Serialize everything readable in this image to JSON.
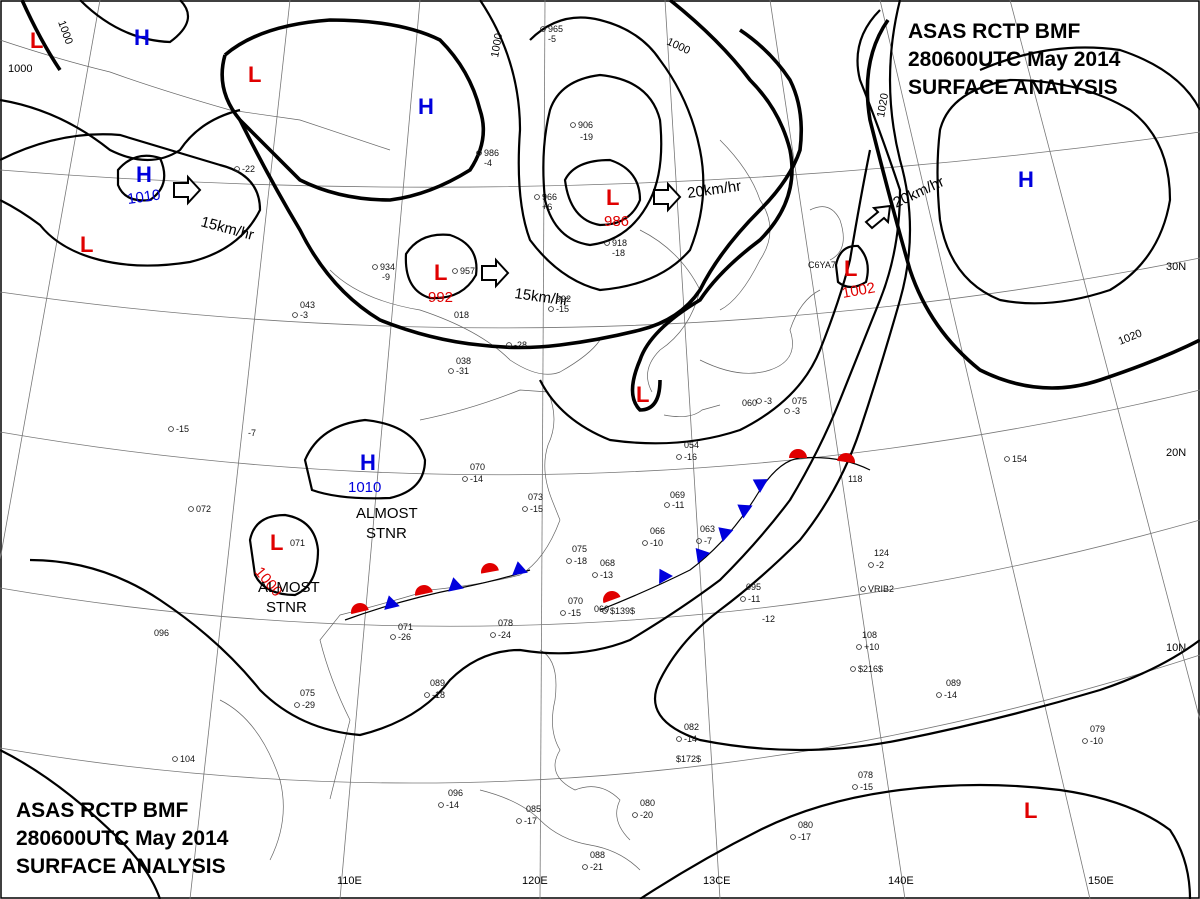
{
  "header": {
    "top_right": [
      "ASAS RCTP BMF",
      "280600UTC May 2014",
      "SURFACE ANALYSIS"
    ],
    "bottom_left": [
      "ASAS RCTP BMF",
      "280600UTC May 2014",
      "SURFACE ANALYSIS"
    ]
  },
  "colors": {
    "low": "#e00000",
    "high": "#0000dd",
    "warm_front": "#e00000",
    "cold_front": "#0000dd",
    "isobar": "#000000",
    "grid": "#777777"
  },
  "longitudes": [
    "110E",
    "120E",
    "13CE",
    "140E",
    "150E"
  ],
  "latitudes": [
    "30N",
    "20N",
    "10N"
  ],
  "isobar_labels": [
    "1000",
    "1000",
    "1000",
    "1000",
    "1020",
    "1020"
  ],
  "pressure_centres": [
    {
      "type": "L",
      "value": "986"
    },
    {
      "type": "L",
      "value": "992"
    },
    {
      "type": "L",
      "value": "1002"
    },
    {
      "type": "L",
      "value": "1000"
    },
    {
      "type": "H",
      "value": "1010"
    },
    {
      "type": "H",
      "value": "1010"
    },
    {
      "type": "L",
      "value": ""
    },
    {
      "type": "L",
      "value": ""
    },
    {
      "type": "L",
      "value": ""
    },
    {
      "type": "L",
      "value": ""
    },
    {
      "type": "L",
      "value": ""
    },
    {
      "type": "H",
      "value": ""
    },
    {
      "type": "H",
      "value": ""
    },
    {
      "type": "H",
      "value": ""
    }
  ],
  "motion_labels": [
    "15km/hr",
    "15km/hr",
    "20km/hr",
    "20km/hr"
  ],
  "annotations": [
    "ALMOST",
    "STNR",
    "ALMOST",
    "STNR"
  ],
  "station_reports": [
    "965",
    "-5",
    "906",
    "-19",
    "986",
    "-4",
    "966",
    "+6",
    "918",
    "-18",
    "934",
    "-9",
    "957",
    "992",
    "-15",
    "018",
    "-28",
    "038",
    "-31",
    "070",
    "-14",
    "073",
    "-15",
    "075",
    "-18",
    "068",
    "-13",
    "070",
    "-15",
    "078",
    "-24",
    "071",
    "-26",
    "089",
    "-18",
    "075",
    "-29",
    "096",
    "-14",
    "088",
    "-21",
    "085",
    "-17",
    "080",
    "-20",
    "069",
    "-11",
    "066",
    "-10",
    "063",
    "-7",
    "095",
    "-11",
    "108",
    "+10",
    "089",
    "-14",
    "124",
    "-2",
    "118",
    "154",
    "079",
    "-10",
    "078",
    "-15",
    "080",
    "-17",
    "082",
    "-14",
    "060",
    "-3",
    "075",
    "-3",
    "054",
    "-16",
    "043",
    "-3",
    "060",
    "072",
    "096",
    "104",
    "071",
    "-22",
    "-7",
    "-15",
    "-12",
    "$216$",
    "$172$",
    "$139$",
    "C6YA7",
    "VRIB2",
    "ZROB"
  ]
}
